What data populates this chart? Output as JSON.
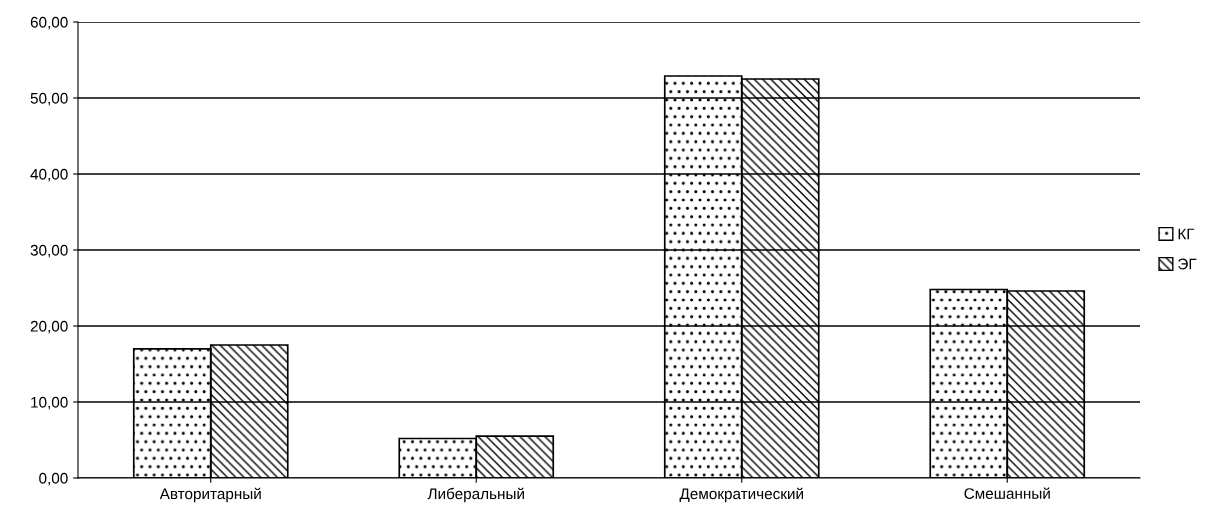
{
  "chart_data": {
    "type": "bar",
    "categories": [
      "Авторитарный",
      "Либеральный",
      "Демократический",
      "Смешанный"
    ],
    "series": [
      {
        "name": "КГ",
        "color": "#000000",
        "values": [
          17.0,
          5.2,
          52.9,
          24.8
        ]
      },
      {
        "name": "ЭГ",
        "color": "#000000",
        "values": [
          17.5,
          5.5,
          52.5,
          24.6
        ]
      }
    ],
    "ylim": [
      0,
      60
    ],
    "yticks": [
      {
        "value": 0,
        "label": "0,00"
      },
      {
        "value": 10,
        "label": "10,00"
      },
      {
        "value": 20,
        "label": "20,00"
      },
      {
        "value": 30,
        "label": "30,00"
      },
      {
        "value": 40,
        "label": "40,00"
      },
      {
        "value": 50,
        "label": "50,00"
      },
      {
        "value": 60,
        "label": "60,00"
      }
    ],
    "grid": "y",
    "legend": "right"
  }
}
